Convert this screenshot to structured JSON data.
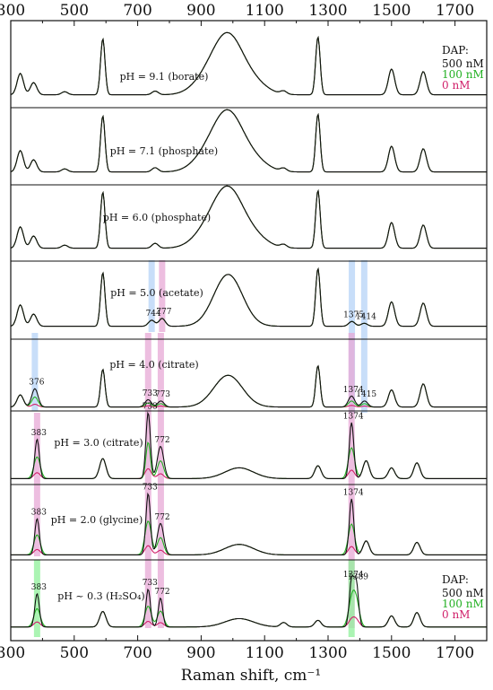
{
  "chart_data": {
    "type": "line",
    "xlabel": "Raman shift, cm⁻¹",
    "xlim": [
      300,
      1800
    ],
    "x_ticks": [
      300,
      500,
      700,
      900,
      1100,
      1300,
      1500,
      1700
    ],
    "grid": false,
    "legend_placement": "top-right and bottom-right",
    "legend_title": "DAP:",
    "series": [
      {
        "name": "500 nM",
        "color": "#111111"
      },
      {
        "name": "100 nM",
        "color": "#22b022"
      },
      {
        "name": "0 nM",
        "color": "#d0206a"
      }
    ],
    "panels": [
      {
        "label": "pH = 9.1 (borate)",
        "peaks": [
          [
            330,
            0.35
          ],
          [
            372,
            0.2
          ],
          [
            470,
            0.05
          ],
          [
            590,
            0.92
          ],
          [
            755,
            0.06
          ],
          [
            920,
            0.25
          ],
          [
            985,
            0.88
          ],
          [
            1060,
            0.2
          ],
          [
            1160,
            0.05
          ],
          [
            1268,
            0.95
          ],
          [
            1500,
            0.42
          ],
          [
            1600,
            0.38
          ]
        ],
        "legend": true
      },
      {
        "label": "pH = 7.1 (phosphate)",
        "peaks": [
          [
            330,
            0.35
          ],
          [
            372,
            0.2
          ],
          [
            470,
            0.05
          ],
          [
            590,
            0.92
          ],
          [
            755,
            0.07
          ],
          [
            920,
            0.25
          ],
          [
            985,
            0.88
          ],
          [
            1060,
            0.2
          ],
          [
            1160,
            0.05
          ],
          [
            1268,
            0.95
          ],
          [
            1500,
            0.42
          ],
          [
            1600,
            0.38
          ]
        ]
      },
      {
        "label": "pH = 6.0 (phosphate)",
        "peaks": [
          [
            330,
            0.35
          ],
          [
            372,
            0.2
          ],
          [
            470,
            0.05
          ],
          [
            590,
            0.92
          ],
          [
            755,
            0.08
          ],
          [
            920,
            0.25
          ],
          [
            985,
            0.88
          ],
          [
            1060,
            0.2
          ],
          [
            1160,
            0.05
          ],
          [
            1268,
            0.95
          ],
          [
            1500,
            0.42
          ],
          [
            1600,
            0.38
          ]
        ]
      },
      {
        "label": "pH = 5.0 (acetate)",
        "peaks": [
          [
            330,
            0.35
          ],
          [
            372,
            0.2
          ],
          [
            590,
            0.88
          ],
          [
            744,
            0.1
          ],
          [
            777,
            0.13
          ],
          [
            985,
            0.85
          ],
          [
            1268,
            0.95
          ],
          [
            1375,
            0.08
          ],
          [
            1414,
            0.05
          ],
          [
            1500,
            0.4
          ],
          [
            1600,
            0.38
          ]
        ],
        "peak_labels": [
          "744",
          "777",
          "1375",
          "1414"
        ]
      },
      {
        "label": "pH = 4.0 (citrate)",
        "peaks": [
          [
            330,
            0.2
          ],
          [
            376,
            0.3
          ],
          [
            590,
            0.62
          ],
          [
            733,
            0.12
          ],
          [
            773,
            0.1
          ],
          [
            985,
            0.52
          ],
          [
            1268,
            0.68
          ],
          [
            1374,
            0.18
          ],
          [
            1415,
            0.1
          ],
          [
            1500,
            0.28
          ],
          [
            1600,
            0.38
          ]
        ],
        "peak_labels": [
          "376",
          "733",
          "773",
          "1374",
          "1415"
        ]
      },
      {
        "label": "pH = 3.0 (citrate)",
        "peaks": [
          [
            383,
            0.55
          ],
          [
            590,
            0.28
          ],
          [
            733,
            0.92
          ],
          [
            772,
            0.45
          ],
          [
            1020,
            0.15
          ],
          [
            1268,
            0.18
          ],
          [
            1374,
            0.78
          ],
          [
            1420,
            0.25
          ],
          [
            1500,
            0.15
          ],
          [
            1580,
            0.22
          ]
        ],
        "peak_labels": [
          "383",
          "733",
          "772",
          "1374"
        ]
      },
      {
        "label": "pH = 2.0 (glycine)",
        "peaks": [
          [
            383,
            0.52
          ],
          [
            733,
            0.88
          ],
          [
            772,
            0.45
          ],
          [
            1020,
            0.15
          ],
          [
            1374,
            0.8
          ],
          [
            1420,
            0.2
          ],
          [
            1580,
            0.18
          ]
        ],
        "peak_labels": [
          "383",
          "733",
          "772",
          "1374"
        ]
      },
      {
        "label": "pH ~ 0.3 (H₂SO₄)",
        "peaks": [
          [
            383,
            0.6
          ],
          [
            590,
            0.28
          ],
          [
            733,
            0.68
          ],
          [
            772,
            0.52
          ],
          [
            1020,
            0.15
          ],
          [
            1160,
            0.08
          ],
          [
            1268,
            0.12
          ],
          [
            1374,
            0.82
          ],
          [
            1389,
            0.78
          ],
          [
            1500,
            0.2
          ],
          [
            1580,
            0.26
          ]
        ],
        "peak_labels": [
          "383",
          "733",
          "772",
          "1374",
          "1389"
        ],
        "legend": true
      }
    ],
    "highlight_bands": [
      {
        "x": 744,
        "color": "#b6d3f7"
      },
      {
        "x": 777,
        "color": "#e7a8d6"
      },
      {
        "x": 1375,
        "color": "#b6d3f7"
      },
      {
        "x": 1414,
        "color": "#b6d3f7"
      },
      {
        "x": 376,
        "color": "#b6d3f7"
      },
      {
        "x": 733,
        "color": "#e7a8d6"
      },
      {
        "x": 773,
        "color": "#e7a8d6"
      },
      {
        "x": 1374,
        "color": "#e7a8d6"
      },
      {
        "x": 383,
        "color": "#e7a8d6"
      },
      {
        "x": 383,
        "color": "#8ff09a"
      },
      {
        "x": 1374,
        "color": "#8ff09a"
      }
    ]
  }
}
